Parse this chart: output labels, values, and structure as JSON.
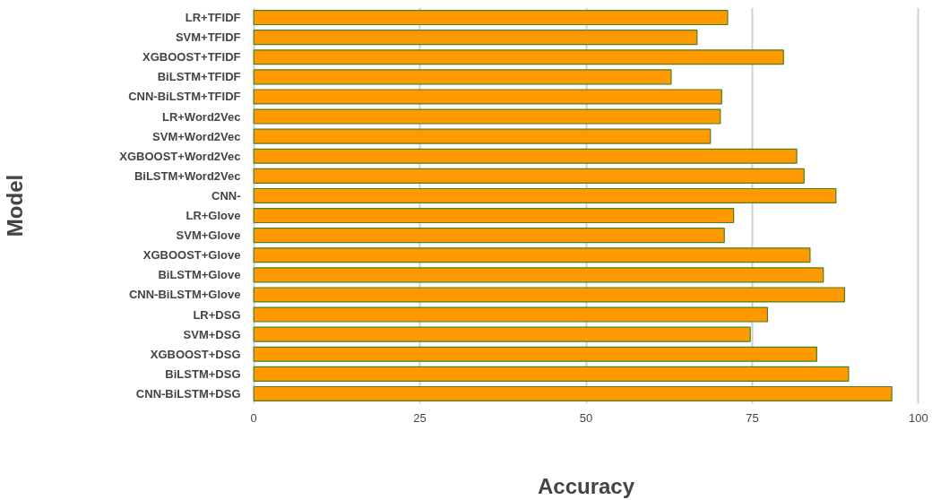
{
  "chart_data": {
    "type": "bar",
    "orientation": "horizontal",
    "xlabel": "Accuracy",
    "ylabel": "Model",
    "categories": [
      "LR+TFIDF",
      "SVM+TFIDF",
      "XGBOOST+TFIDF",
      "BiLSTM+TFIDF",
      "CNN-BiLSTM+TFIDF",
      "LR+Word2Vec",
      "SVM+Word2Vec",
      "XGBOOST+Word2Vec",
      "BiLSTM+Word2Vec",
      "CNN-",
      "LR+Glove",
      "SVM+Glove",
      "XGBOOST+Glove",
      "BiLSTM+Glove",
      "CNN-BiLSTM+Glove",
      "LR+DSG",
      "SVM+DSG",
      "XGBOOST+DSG",
      "BiLSTM+DSG",
      "CNN-BiLSTM+DSG"
    ],
    "values": [
      71.3,
      66.7,
      79.7,
      62.8,
      70.4,
      70.2,
      68.7,
      81.7,
      82.8,
      87.6,
      72.2,
      70.8,
      83.7,
      85.7,
      88.9,
      77.3,
      74.7,
      84.7,
      89.5,
      96.0
    ],
    "color": "#ff9900",
    "xlim": [
      -0.5,
      100.5
    ],
    "xticks": [
      0,
      25,
      50,
      75,
      100
    ],
    "grid": "x"
  }
}
